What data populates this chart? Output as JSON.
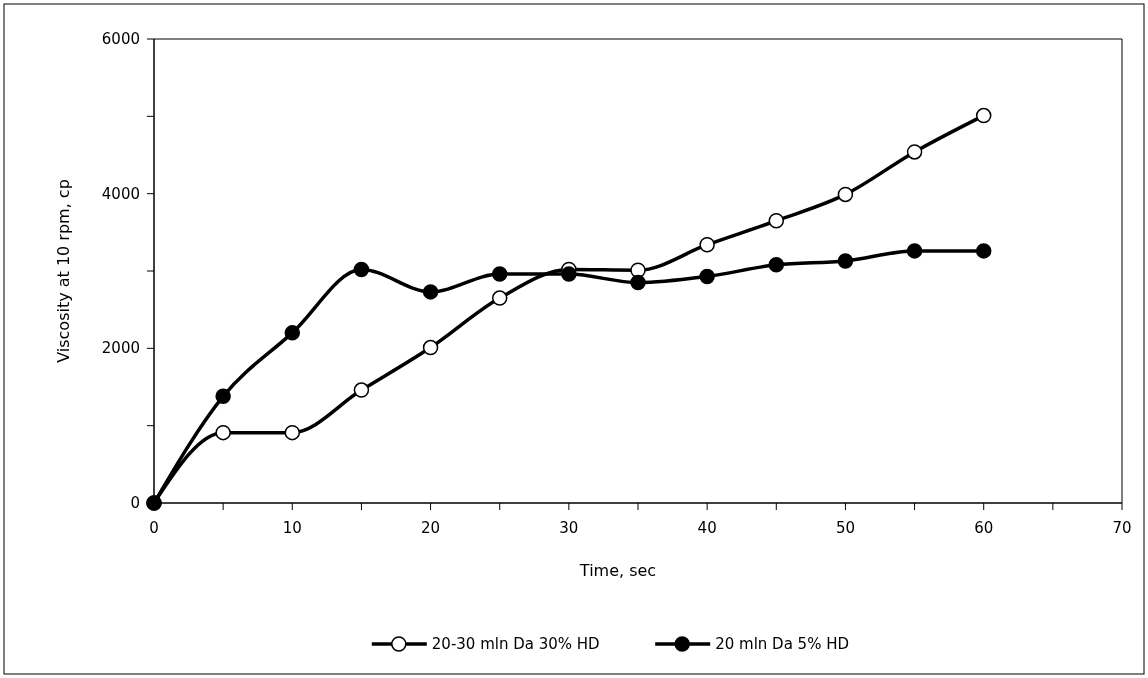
{
  "chart_data": {
    "type": "line",
    "xlabel": "Time, sec",
    "ylabel": "Viscosity at 10 rpm, cp",
    "x": [
      0,
      5,
      10,
      15,
      20,
      25,
      30,
      35,
      40,
      45,
      50,
      55,
      60
    ],
    "series": [
      {
        "name": "20-30 mln Da 30% HD",
        "color": "#000000",
        "values": [
          0,
          910,
          910,
          1460,
          2010,
          2650,
          3020,
          3010,
          3340,
          3650,
          3990,
          4540,
          5010
        ]
      },
      {
        "name": "20 mln Da 5% HD",
        "color": "#000000",
        "values": [
          0,
          1380,
          2200,
          3020,
          2730,
          2960,
          2960,
          2850,
          2930,
          3080,
          3130,
          3260,
          3260
        ]
      }
    ],
    "xlim": [
      0,
      70
    ],
    "xticks": [
      0,
      {
        "value": 5,
        "label": null
      },
      10,
      {
        "value": 15,
        "label": null
      },
      20,
      {
        "value": 25,
        "label": null
      },
      30,
      {
        "value": 35,
        "label": null
      },
      40,
      {
        "value": 45,
        "label": null
      },
      50,
      {
        "value": 55,
        "label": null
      },
      60,
      {
        "value": 65,
        "label": null
      },
      70
    ],
    "ylim": [
      0,
      6000
    ],
    "yticks": [
      0,
      {
        "value": 1000,
        "label": null
      },
      2000,
      {
        "value": 3000,
        "label": null
      },
      4000,
      {
        "value": 5000,
        "label": null
      },
      6000
    ],
    "grid": false,
    "legend": "bottom",
    "marker": "circle",
    "line_style": "solid"
  }
}
